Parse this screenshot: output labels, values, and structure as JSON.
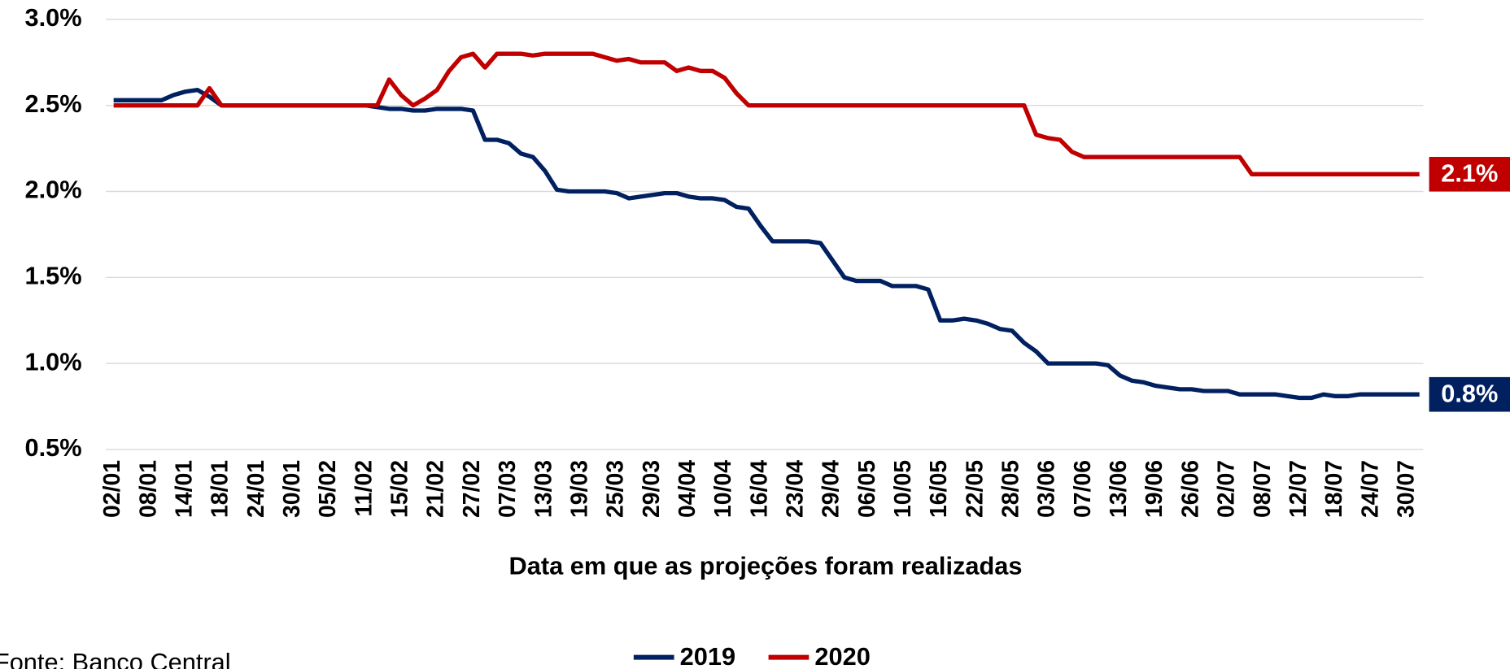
{
  "chart_data": {
    "type": "line",
    "x_label": "Data em que as projeções foram realizadas",
    "source": "Fonte: Banco Central",
    "categories": [
      "02/01",
      null,
      null,
      "08/01",
      null,
      null,
      "14/01",
      null,
      null,
      "18/01",
      null,
      null,
      "24/01",
      null,
      null,
      "30/01",
      null,
      null,
      "05/02",
      null,
      null,
      "11/02",
      null,
      null,
      "15/02",
      null,
      null,
      "21/02",
      null,
      null,
      "27/02",
      null,
      null,
      "07/03",
      null,
      null,
      "13/03",
      null,
      null,
      "19/03",
      null,
      null,
      "25/03",
      null,
      null,
      "29/03",
      null,
      null,
      "04/04",
      null,
      null,
      "10/04",
      null,
      null,
      "16/04",
      null,
      null,
      "23/04",
      null,
      null,
      "29/04",
      null,
      null,
      "06/05",
      null,
      null,
      "10/05",
      null,
      null,
      "16/05",
      null,
      null,
      "22/05",
      null,
      null,
      "28/05",
      null,
      null,
      "03/06",
      null,
      null,
      "07/06",
      null,
      null,
      "13/06",
      null,
      null,
      "19/06",
      null,
      null,
      "26/06",
      null,
      null,
      "02/07",
      null,
      null,
      "08/07",
      null,
      null,
      "12/07",
      null,
      null,
      "18/07",
      null,
      null,
      "24/07",
      null,
      null,
      "30/07",
      null
    ],
    "series": [
      {
        "name": "2019",
        "color": "#002060",
        "values": [
          2.53,
          2.53,
          2.53,
          2.53,
          2.53,
          2.56,
          2.58,
          2.59,
          2.55,
          2.5,
          2.5,
          2.5,
          2.5,
          2.5,
          2.5,
          2.5,
          2.5,
          2.5,
          2.5,
          2.5,
          2.5,
          2.5,
          2.49,
          2.48,
          2.48,
          2.47,
          2.47,
          2.48,
          2.48,
          2.48,
          2.47,
          2.3,
          2.3,
          2.28,
          2.22,
          2.2,
          2.12,
          2.01,
          2.0,
          2.0,
          2.0,
          2.0,
          1.99,
          1.96,
          1.97,
          1.98,
          1.99,
          1.99,
          1.97,
          1.96,
          1.96,
          1.95,
          1.91,
          1.9,
          1.8,
          1.71,
          1.71,
          1.71,
          1.71,
          1.7,
          1.6,
          1.5,
          1.48,
          1.48,
          1.48,
          1.45,
          1.45,
          1.45,
          1.43,
          1.25,
          1.25,
          1.26,
          1.25,
          1.23,
          1.2,
          1.19,
          1.12,
          1.07,
          1.0,
          1.0,
          1.0,
          1.0,
          1.0,
          0.99,
          0.93,
          0.9,
          0.89,
          0.87,
          0.86,
          0.85,
          0.85,
          0.84,
          0.84,
          0.84,
          0.82,
          0.82,
          0.82,
          0.82,
          0.81,
          0.8,
          0.8,
          0.82,
          0.81,
          0.81,
          0.82,
          0.82,
          0.82,
          0.82,
          0.82,
          0.82
        ],
        "value_labels": [
          null,
          null,
          null,
          null,
          null,
          null,
          null,
          null,
          null,
          null,
          null,
          null,
          null,
          null,
          null,
          null,
          null,
          null,
          null,
          null,
          null,
          null,
          null,
          null,
          null,
          null,
          null,
          null,
          null,
          null,
          null,
          null,
          null,
          null,
          null,
          null,
          null,
          null,
          null,
          null,
          null,
          null,
          null,
          null,
          null,
          null,
          null,
          null,
          null,
          null,
          null,
          null,
          null,
          null,
          null,
          null,
          null,
          null,
          null,
          null,
          null,
          null,
          null,
          null,
          null,
          null,
          null,
          null,
          null,
          null,
          null,
          null,
          null,
          null,
          null,
          null,
          null,
          null,
          null,
          null,
          null,
          null,
          null,
          null,
          null,
          null,
          null,
          null,
          null,
          null,
          null,
          null,
          null,
          null,
          null,
          null,
          null,
          null,
          null,
          null,
          null,
          null,
          null,
          null,
          null,
          null,
          null,
          null,
          null,
          "0.8%"
        ]
      },
      {
        "name": "2020",
        "color": "#c00000",
        "values": [
          2.5,
          2.5,
          2.5,
          2.5,
          2.5,
          2.5,
          2.5,
          2.5,
          2.6,
          2.5,
          2.5,
          2.5,
          2.5,
          2.5,
          2.5,
          2.5,
          2.5,
          2.5,
          2.5,
          2.5,
          2.5,
          2.5,
          2.5,
          2.65,
          2.56,
          2.5,
          2.54,
          2.59,
          2.7,
          2.78,
          2.8,
          2.72,
          2.8,
          2.8,
          2.8,
          2.79,
          2.8,
          2.8,
          2.8,
          2.8,
          2.8,
          2.78,
          2.76,
          2.77,
          2.75,
          2.75,
          2.75,
          2.7,
          2.72,
          2.7,
          2.7,
          2.66,
          2.57,
          2.5,
          2.5,
          2.5,
          2.5,
          2.5,
          2.5,
          2.5,
          2.5,
          2.5,
          2.5,
          2.5,
          2.5,
          2.5,
          2.5,
          2.5,
          2.5,
          2.5,
          2.5,
          2.5,
          2.5,
          2.5,
          2.5,
          2.5,
          2.5,
          2.33,
          2.31,
          2.3,
          2.23,
          2.2,
          2.2,
          2.2,
          2.2,
          2.2,
          2.2,
          2.2,
          2.2,
          2.2,
          2.2,
          2.2,
          2.2,
          2.2,
          2.2,
          2.1,
          2.1,
          2.1,
          2.1,
          2.1,
          2.1,
          2.1,
          2.1,
          2.1,
          2.1,
          2.1,
          2.1,
          2.1,
          2.1,
          2.1
        ],
        "value_labels": [
          null,
          null,
          null,
          null,
          null,
          null,
          null,
          null,
          null,
          null,
          null,
          null,
          null,
          null,
          null,
          null,
          null,
          null,
          null,
          null,
          null,
          null,
          null,
          null,
          null,
          null,
          null,
          null,
          null,
          null,
          null,
          null,
          null,
          null,
          null,
          null,
          null,
          null,
          null,
          null,
          null,
          null,
          null,
          null,
          null,
          null,
          null,
          null,
          null,
          null,
          null,
          null,
          null,
          null,
          null,
          null,
          null,
          null,
          null,
          null,
          null,
          null,
          null,
          null,
          null,
          null,
          null,
          null,
          null,
          null,
          null,
          null,
          null,
          null,
          null,
          null,
          null,
          null,
          null,
          null,
          null,
          null,
          null,
          null,
          null,
          null,
          null,
          null,
          null,
          null,
          null,
          null,
          null,
          null,
          null,
          null,
          null,
          null,
          null,
          null,
          null,
          null,
          null,
          null,
          null,
          null,
          null,
          null,
          null,
          "2.1%"
        ]
      }
    ],
    "ylim": [
      0.5,
      3.0
    ],
    "yticks": [
      {
        "value": 0.5,
        "label": "0.5%"
      },
      {
        "value": 1.0,
        "label": "1.0%"
      },
      {
        "value": 1.5,
        "label": "1.5%"
      },
      {
        "value": 2.0,
        "label": "2.0%"
      },
      {
        "value": 2.5,
        "label": "2.5%"
      },
      {
        "value": 3.0,
        "label": "3.0%"
      }
    ],
    "grid": true,
    "legend": "bottom"
  }
}
